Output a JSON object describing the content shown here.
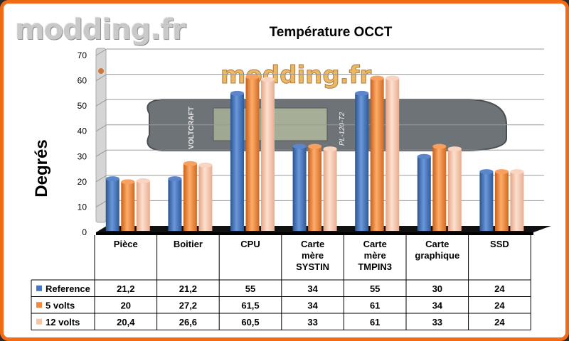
{
  "watermark": "modding.fr",
  "photo_watermark": "modding.fr",
  "device_brand": "VOLTCRAFT",
  "device_model": "PL-120-T2",
  "colors": {
    "frame": "#f26b12",
    "reference": "#4575c0",
    "volts5": "#f08a3c",
    "volts12": "#f7c2a6"
  },
  "chart_data": {
    "type": "bar",
    "title": "Température OCCT",
    "xlabel": "",
    "ylabel": "Degrés",
    "ylim": [
      0,
      70
    ],
    "yticks": [
      0,
      10,
      20,
      30,
      40,
      50,
      60,
      70
    ],
    "categories": [
      "Pièce",
      "Boitier",
      "CPU",
      "Carte mère SYSTIN",
      "Carte mère TMPIN3",
      "Carte graphique",
      "SSD"
    ],
    "series": [
      {
        "name": "Reference",
        "values": [
          21.2,
          21.2,
          55,
          34,
          55,
          30,
          24
        ],
        "labels": [
          "21,2",
          "21,2",
          "55",
          "34",
          "55",
          "30",
          "24"
        ]
      },
      {
        "name": "5 volts",
        "values": [
          20,
          27.2,
          61.5,
          34,
          61,
          34,
          24
        ],
        "labels": [
          "20",
          "27,2",
          "61,5",
          "34",
          "61",
          "34",
          "24"
        ]
      },
      {
        "name": "12 volts",
        "values": [
          20.4,
          26.6,
          60.5,
          33,
          61,
          33,
          24
        ],
        "labels": [
          "20,4",
          "26,6",
          "60,5",
          "33",
          "61",
          "33",
          "24"
        ]
      }
    ],
    "grid": true,
    "legend": "data-table"
  }
}
